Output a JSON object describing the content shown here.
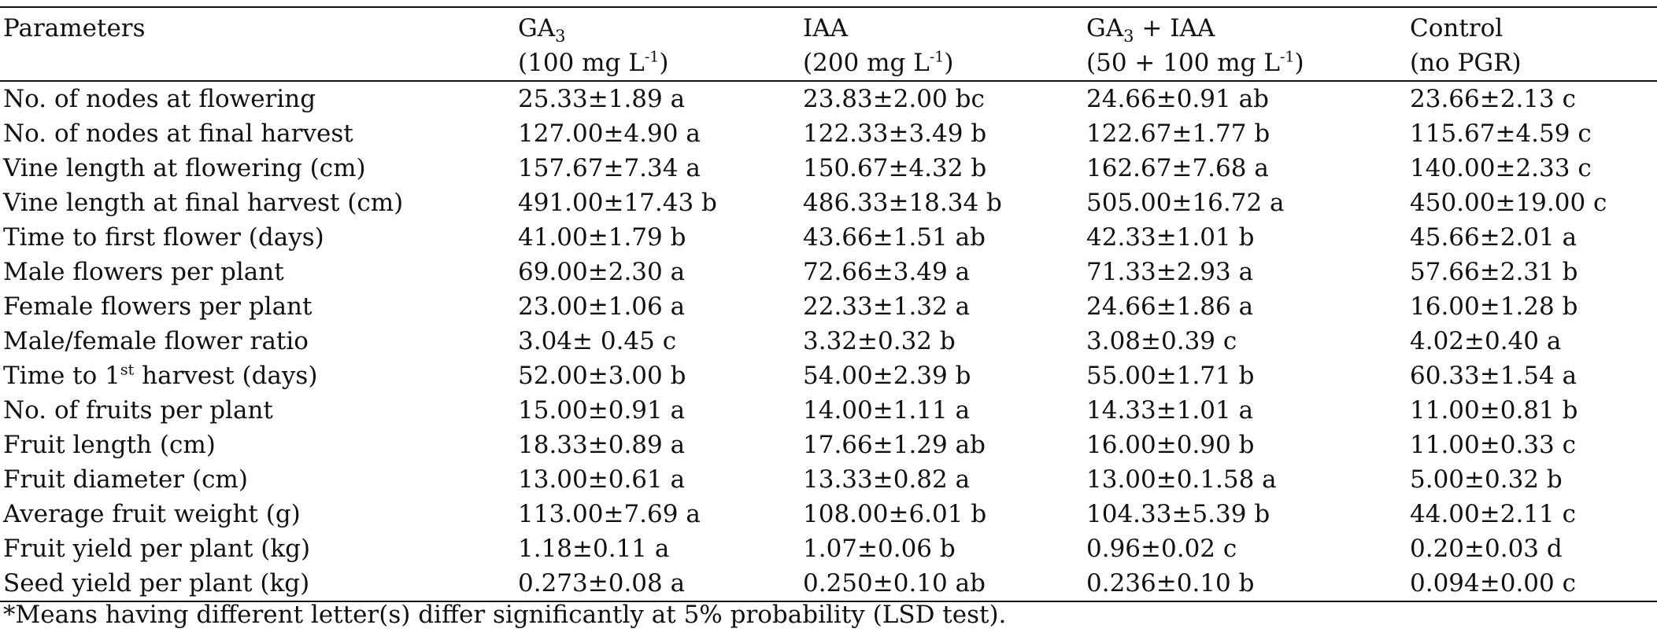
{
  "header": {
    "parameters": "Parameters",
    "ga3_name": "GA",
    "ga3_sub": "3",
    "ga3_dose_pre": "(100 mg L",
    "ga3_dose_sup": "-1",
    "ga3_dose_post": ")",
    "iaa_name": "IAA",
    "iaa_dose_pre": "(200 mg L",
    "iaa_dose_sup": "-1",
    "iaa_dose_post": ")",
    "combo_name_pre": "GA",
    "combo_sub": "3",
    "combo_name_post": " + IAA",
    "combo_dose_pre": "(50 + 100 mg L",
    "combo_dose_sup": "-1",
    "combo_dose_post": ")",
    "control_name": "Control",
    "control_dose": "(no PGR)"
  },
  "rows": [
    {
      "param": "No. of nodes at flowering",
      "ga3": "25.33±1.89 a",
      "iaa": "23.83±2.00 bc",
      "combo": "24.66±0.91 ab",
      "control": "23.66±2.13 c"
    },
    {
      "param": "No. of nodes at final harvest",
      "ga3": "127.00±4.90 a",
      "iaa": "122.33±3.49 b",
      "combo": "122.67±1.77 b",
      "control": "115.67±4.59 c"
    },
    {
      "param": "Vine length at flowering (cm)",
      "ga3": "157.67±7.34 a",
      "iaa": "150.67±4.32 b",
      "combo": "162.67±7.68 a",
      "control": "140.00±2.33 c"
    },
    {
      "param": "Vine length at final harvest (cm)",
      "ga3": "491.00±17.43 b",
      "iaa": "486.33±18.34 b",
      "combo": "505.00±16.72 a",
      "control": "450.00±19.00 c"
    },
    {
      "param": "Time to first flower (days)",
      "ga3": "41.00±1.79 b",
      "iaa": "43.66±1.51 ab",
      "combo": "42.33±1.01 b",
      "control": "45.66±2.01 a"
    },
    {
      "param": "Male flowers per plant",
      "ga3": "69.00±2.30 a",
      "iaa": "72.66±3.49 a",
      "combo": "71.33±2.93 a",
      "control": "57.66±2.31 b"
    },
    {
      "param": "Female flowers per plant",
      "ga3": "23.00±1.06 a",
      "iaa": "22.33±1.32 a",
      "combo": "24.66±1.86 a",
      "control": "16.00±1.28 b"
    },
    {
      "param": "Male/female flower ratio",
      "ga3": "3.04± 0.45 c",
      "iaa": "3.32±0.32 b",
      "combo": "3.08±0.39 c",
      "control": "4.02±0.40 a"
    },
    {
      "param_pre": "Time to 1",
      "param_sup": "st",
      "param_post": " harvest (days)",
      "ga3": "52.00±3.00 b",
      "iaa": "54.00±2.39 b",
      "combo": "55.00±1.71 b",
      "control": "60.33±1.54 a"
    },
    {
      "param": "No. of fruits per plant",
      "ga3": "15.00±0.91 a",
      "iaa": "14.00±1.11 a",
      "combo": "14.33±1.01 a",
      "control": "11.00±0.81 b"
    },
    {
      "param": "Fruit length (cm)",
      "ga3": "18.33±0.89 a",
      "iaa": "17.66±1.29 ab",
      "combo": "16.00±0.90 b",
      "control": "11.00±0.33 c"
    },
    {
      "param": "Fruit diameter (cm)",
      "ga3": "13.00±0.61 a",
      "iaa": "13.33±0.82 a",
      "combo": "13.00±0.1.58 a",
      "control": "5.00±0.32 b"
    },
    {
      "param": "Average fruit weight (g)",
      "ga3": "113.00±7.69 a",
      "iaa": "108.00±6.01 b",
      "combo": "104.33±5.39 b",
      "control": "44.00±2.11 c"
    },
    {
      "param": "Fruit yield per plant (kg)",
      "ga3": "1.18±0.11 a",
      "iaa": "1.07±0.06 b",
      "combo": "0.96±0.02 c",
      "control": "0.20±0.03 d"
    },
    {
      "param": "Seed yield per plant (kg)",
      "ga3": "0.273±0.08 a",
      "iaa": "0.250±0.10 ab",
      "combo": "0.236±0.10 b",
      "control": "0.094±0.00 c"
    }
  ],
  "footnote": "*Means having different letter(s) differ significantly at 5% probability (LSD test)."
}
